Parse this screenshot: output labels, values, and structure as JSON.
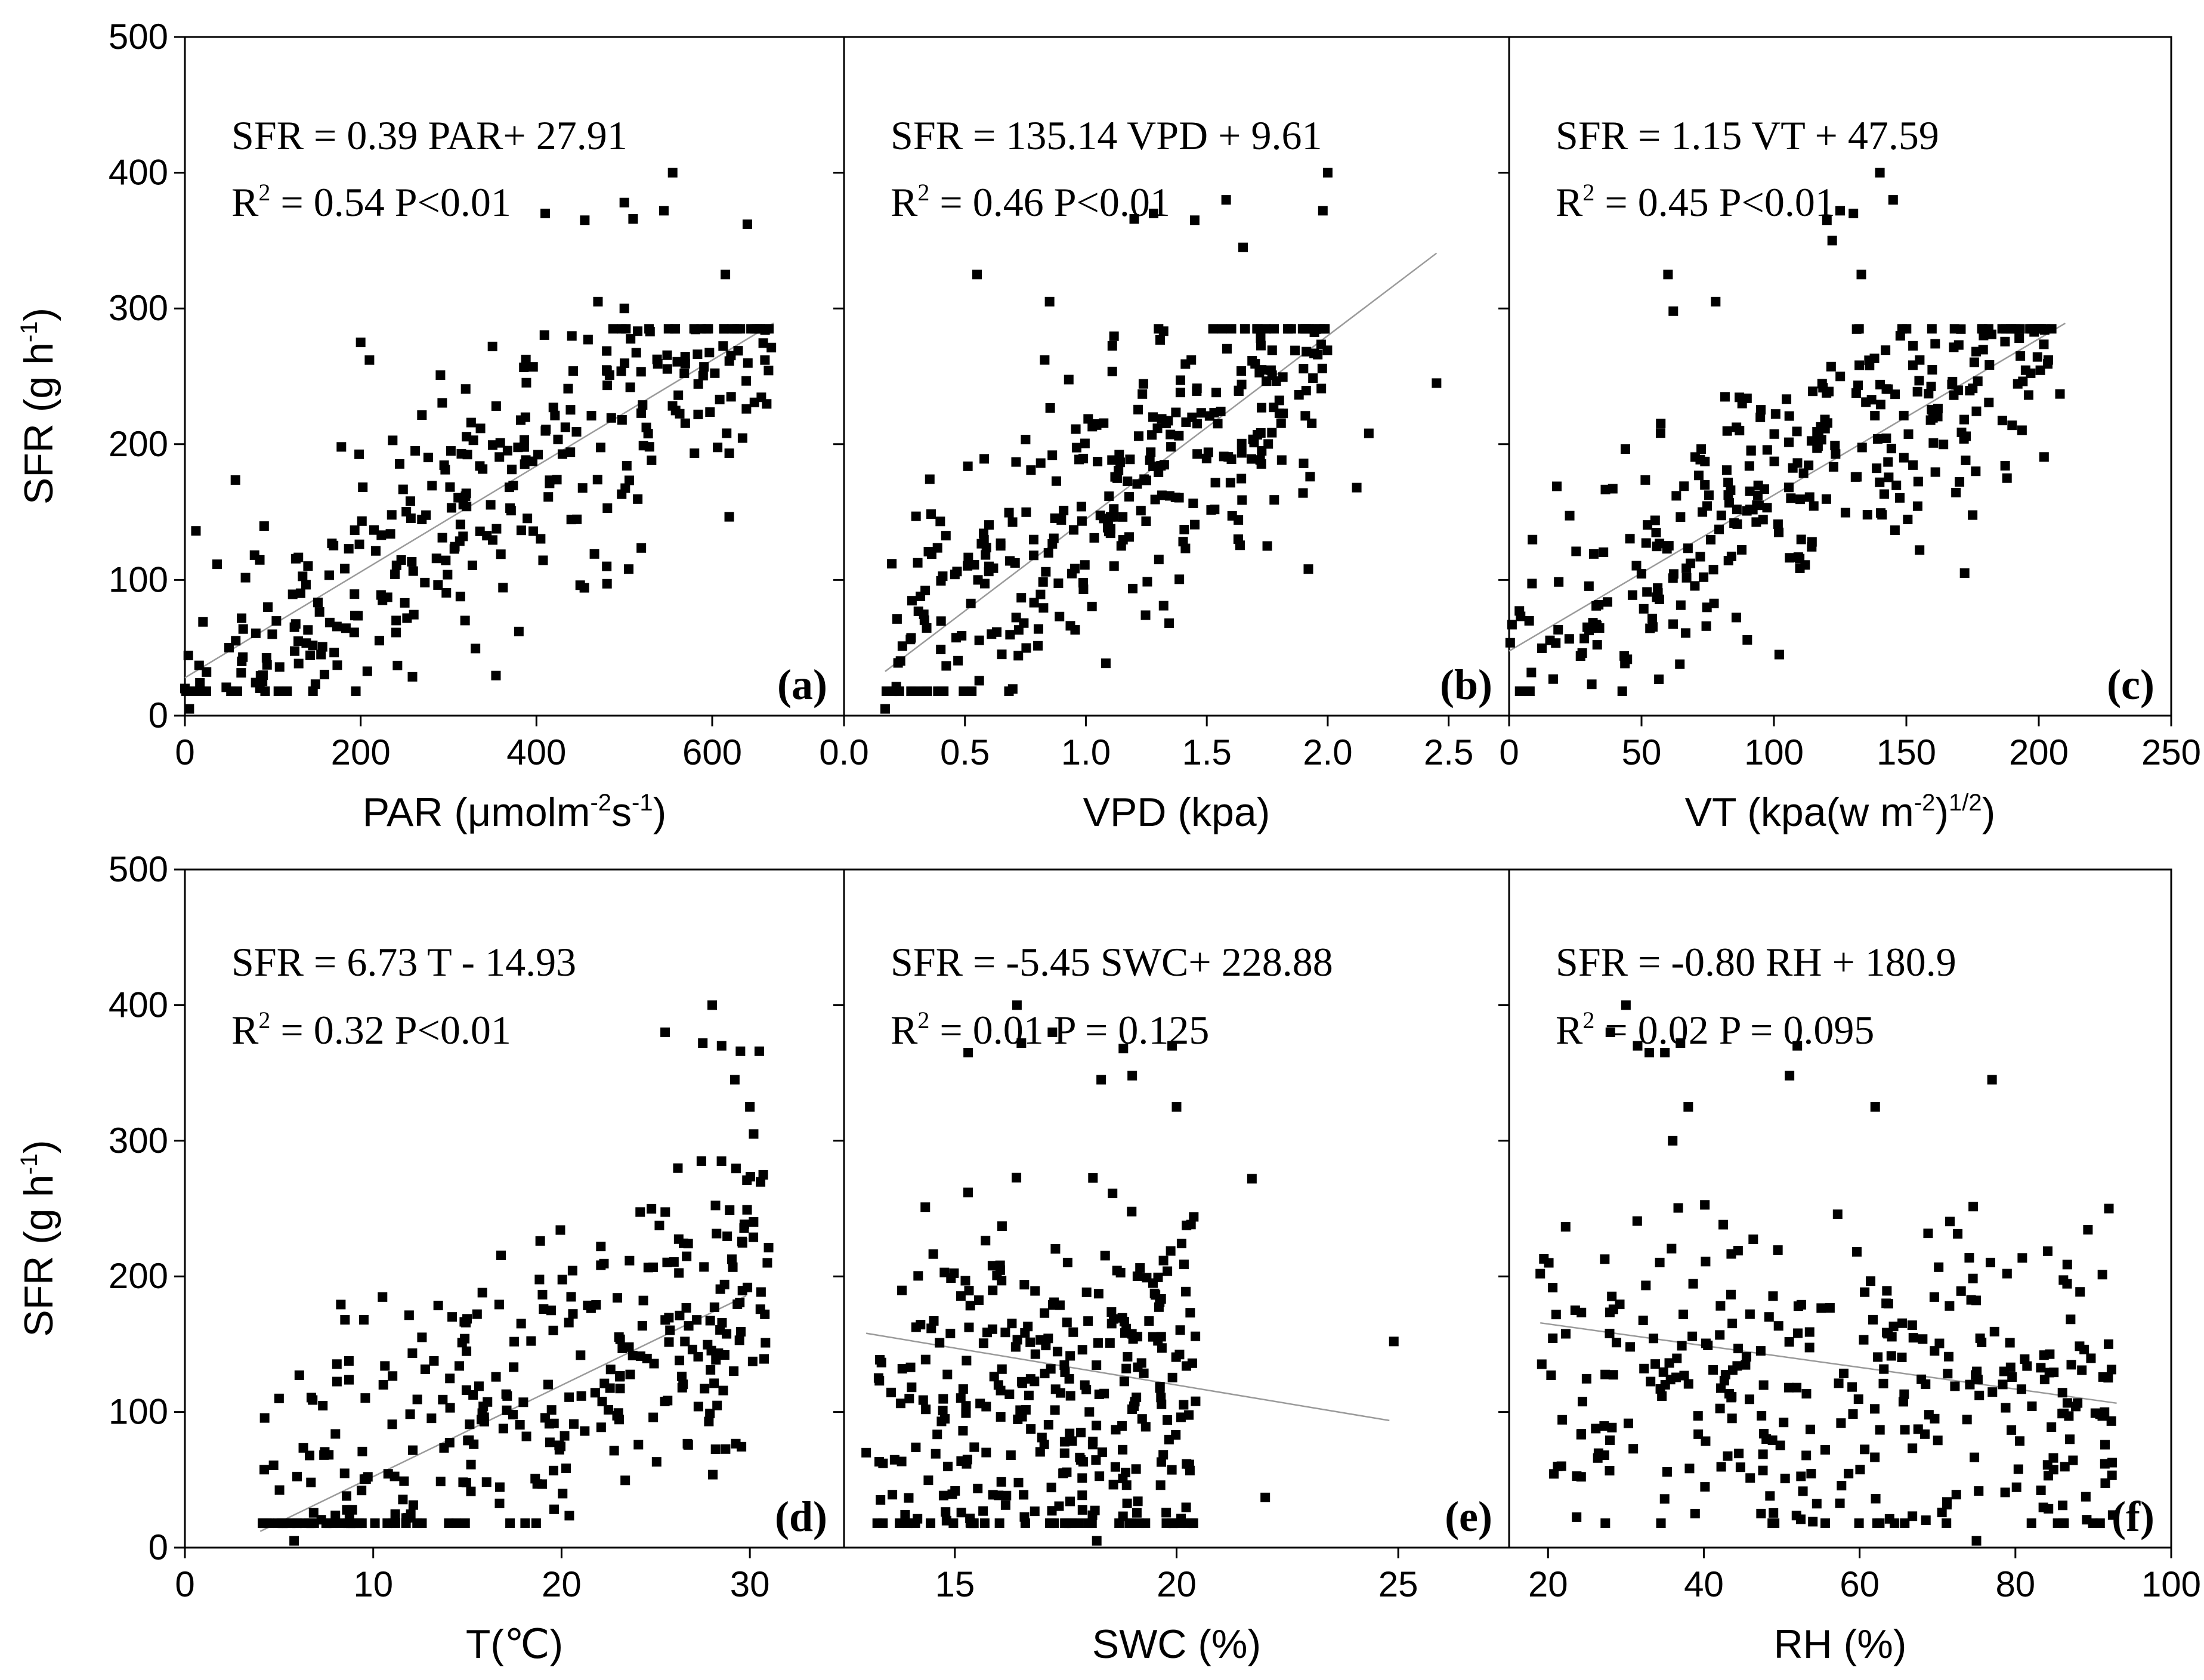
{
  "colors": {
    "marker": "#000000",
    "axis": "#000000",
    "fit_line": "#9a9a9a",
    "background": "#ffffff"
  },
  "rows": [
    {
      "ylabel": {
        "main": "SFR (g h",
        "sup": "-1",
        "close": ")"
      },
      "yticks": [
        "0",
        "100",
        "200",
        "300",
        "400",
        "500"
      ]
    },
    {
      "ylabel": {
        "main": "SFR (g h",
        "sup": "-1",
        "close": ")"
      },
      "yticks": [
        "0",
        "100",
        "200",
        "300",
        "400",
        "500"
      ]
    }
  ],
  "chart_data": [
    {
      "type": "scatter",
      "panel": "(a)",
      "xlabel": {
        "main": "PAR (μmolm",
        "sup1": "-2",
        "mid": "s",
        "sup2": "-1",
        "close": ")"
      },
      "xlim": [
        0,
        750
      ],
      "ylim": [
        0,
        500
      ],
      "xticks": [
        0,
        200,
        400,
        600
      ],
      "xtick_labels": [
        "0",
        "200",
        "400",
        "600"
      ],
      "equation": "SFR =  0.39 PAR+ 27.91",
      "stats": {
        "r2_label": "R",
        "r2_sup": "2",
        "r2_value": " = 0.54  P<0.01"
      },
      "fit": {
        "slope": 0.39,
        "intercept": 27.91,
        "x_range": [
          0,
          670
        ]
      },
      "gen": {
        "seed": 11,
        "n": 320,
        "xmin": 0,
        "xmax": 670,
        "slope": 0.39,
        "intercept": 27.91,
        "noise": 48
      },
      "points": [
        [
          0,
          20
        ],
        [
          5,
          5
        ],
        [
          410,
          370
        ],
        [
          455,
          365
        ],
        [
          500,
          378
        ],
        [
          545,
          372
        ],
        [
          555,
          400
        ],
        [
          510,
          366
        ],
        [
          640,
          362
        ],
        [
          615,
          325
        ],
        [
          470,
          305
        ],
        [
          500,
          300
        ],
        [
          200,
          275
        ],
        [
          210,
          262
        ],
        [
          350,
          272
        ],
        [
          660,
          262
        ],
        [
          480,
          110
        ],
        [
          505,
          108
        ],
        [
          380,
          62
        ]
      ]
    },
    {
      "type": "scatter",
      "panel": "(b)",
      "xlabel": {
        "main": "VPD (kpa)"
      },
      "xlim": [
        0,
        2.75
      ],
      "ylim": [
        0,
        500
      ],
      "xticks": [
        0,
        0.5,
        1.0,
        1.5,
        2.0,
        2.5
      ],
      "xtick_labels": [
        "0.0",
        "0.5",
        "1.0",
        "1.5",
        "2.0",
        "2.5"
      ],
      "equation": "SFR = 135.14 VPD + 9.61",
      "stats": {
        "r2_label": "R",
        "r2_sup": "2",
        "r2_value": " = 0.46  P<0.01"
      },
      "fit": {
        "slope": 135.14,
        "intercept": 9.61,
        "x_range": [
          0.17,
          2.45
        ]
      },
      "gen": {
        "seed": 23,
        "n": 320,
        "xmin": 0.17,
        "xmax": 2.0,
        "slope": 135.14,
        "intercept": 9.61,
        "noise": 50
      },
      "points": [
        [
          0.17,
          5
        ],
        [
          2.0,
          400
        ],
        [
          1.98,
          372
        ],
        [
          1.58,
          380
        ],
        [
          1.45,
          365
        ],
        [
          1.28,
          370
        ],
        [
          1.2,
          366
        ],
        [
          1.65,
          345
        ],
        [
          0.55,
          325
        ],
        [
          0.85,
          305
        ],
        [
          2.45,
          245
        ],
        [
          2.17,
          208
        ],
        [
          2.12,
          168
        ],
        [
          1.92,
          108
        ],
        [
          1.75,
          125
        ],
        [
          1.63,
          130
        ]
      ]
    },
    {
      "type": "scatter",
      "panel": "(c)",
      "xlabel": {
        "main": "VT (kpa(w m",
        "sup1": "-2",
        "mid": ")",
        "sup2": "1/2",
        "close": ")"
      },
      "xlim": [
        0,
        250
      ],
      "ylim": [
        0,
        500
      ],
      "xticks": [
        0,
        50,
        100,
        150,
        200,
        250
      ],
      "xtick_labels": [
        "0",
        "50",
        "100",
        "150",
        "200",
        "250"
      ],
      "equation": "SFR = 1.15 VT + 47.59",
      "stats": {
        "r2_label": "R",
        "r2_sup": "2",
        "r2_value": " = 0.45  P<0.01"
      },
      "fit": {
        "slope": 1.15,
        "intercept": 47.59,
        "x_range": [
          0,
          210
        ]
      },
      "gen": {
        "seed": 37,
        "n": 320,
        "xmin": 0,
        "xmax": 205,
        "slope": 1.15,
        "intercept": 47.59,
        "noise": 45
      },
      "points": [
        [
          140,
          400
        ],
        [
          145,
          380
        ],
        [
          125,
          372
        ],
        [
          130,
          370
        ],
        [
          120,
          365
        ],
        [
          122,
          350
        ],
        [
          133,
          325
        ],
        [
          60,
          325
        ],
        [
          78,
          305
        ],
        [
          208,
          237
        ],
        [
          188,
          175
        ],
        [
          172,
          105
        ],
        [
          155,
          122
        ],
        [
          102,
          45
        ],
        [
          62,
          298
        ]
      ]
    },
    {
      "type": "scatter",
      "panel": "(d)",
      "xlabel": {
        "main": "T(℃)"
      },
      "xlim": [
        0,
        35
      ],
      "ylim": [
        0,
        500
      ],
      "xticks": [
        0,
        10,
        20,
        30
      ],
      "xtick_labels": [
        "0",
        "10",
        "20",
        "30"
      ],
      "equation": "SFR = 6.73 T - 14.93",
      "stats": {
        "r2_label": "R",
        "r2_sup": "2",
        "r2_value": " = 0.32  P<0.01"
      },
      "fit": {
        "slope": 6.73,
        "intercept": -14.93,
        "x_range": [
          4,
          29.8
        ]
      },
      "gen": {
        "seed": 53,
        "n": 320,
        "xmin": 4,
        "xmax": 31,
        "slope": 6.73,
        "intercept": -14.93,
        "noise": 55
      },
      "points": [
        [
          28,
          400
        ],
        [
          25.5,
          380
        ],
        [
          27.5,
          372
        ],
        [
          28.5,
          370
        ],
        [
          29.5,
          366
        ],
        [
          30.5,
          366
        ],
        [
          29.2,
          345
        ],
        [
          30,
          325
        ],
        [
          30.2,
          305
        ],
        [
          8.5,
          168
        ],
        [
          9.5,
          168
        ],
        [
          5.8,
          5
        ],
        [
          5,
          110
        ]
      ]
    },
    {
      "type": "scatter",
      "panel": "(e)",
      "xlabel": {
        "main": "SWC (%)"
      },
      "xlim": [
        12.5,
        27.5
      ],
      "ylim": [
        0,
        500
      ],
      "xticks": [
        15,
        20,
        25
      ],
      "xtick_labels": [
        "15",
        "20",
        "25"
      ],
      "equation": "SFR  = -5.45 SWC+ 228.88",
      "stats": {
        "r2_label": "R",
        "r2_sup": "2",
        "r2_value": " = 0.01  P = 0.125"
      },
      "fit": {
        "slope": -5.45,
        "intercept": 228.88,
        "x_range": [
          13,
          24.8
        ]
      },
      "gen": {
        "seed": 71,
        "n": 320,
        "xmin": 13.2,
        "xmax": 20.5,
        "slope": 0,
        "intercept": 110,
        "noise": 70
      },
      "points": [
        [
          24.9,
          152
        ],
        [
          21.7,
          272
        ],
        [
          22,
          37
        ],
        [
          13,
          70
        ],
        [
          16.4,
          400
        ],
        [
          15.3,
          365
        ],
        [
          16.5,
          372
        ],
        [
          17.2,
          380
        ],
        [
          18.8,
          368
        ],
        [
          19.9,
          370
        ],
        [
          20,
          325
        ],
        [
          18.3,
          345
        ],
        [
          19,
          348
        ],
        [
          18.2,
          5
        ]
      ]
    },
    {
      "type": "scatter",
      "panel": "(f)",
      "xlabel": {
        "main": "RH (%)"
      },
      "xlim": [
        15,
        100
      ],
      "ylim": [
        0,
        500
      ],
      "xticks": [
        20,
        40,
        60,
        80,
        100
      ],
      "xtick_labels": [
        "20",
        "40",
        "60",
        "80",
        "100"
      ],
      "equation": "SFR = -0.80 RH + 180.9",
      "stats": {
        "r2_label": "R",
        "r2_sup": "2",
        "r2_value": " = 0.02  P = 0.095"
      },
      "fit": {
        "slope": -0.8,
        "intercept": 180.9,
        "x_range": [
          19,
          93
        ]
      },
      "gen": {
        "seed": 89,
        "n": 320,
        "xmin": 19,
        "xmax": 93,
        "slope": -0.5,
        "intercept": 150,
        "noise": 70
      },
      "points": [
        [
          30,
          400
        ],
        [
          28,
          380
        ],
        [
          31.5,
          370
        ],
        [
          33,
          365
        ],
        [
          35,
          365
        ],
        [
          37,
          372
        ],
        [
          52,
          370
        ],
        [
          38,
          325
        ],
        [
          36,
          300
        ],
        [
          51,
          348
        ],
        [
          62,
          325
        ],
        [
          77,
          345
        ],
        [
          19,
          202
        ],
        [
          92,
          250
        ],
        [
          75,
          5
        ]
      ]
    }
  ]
}
